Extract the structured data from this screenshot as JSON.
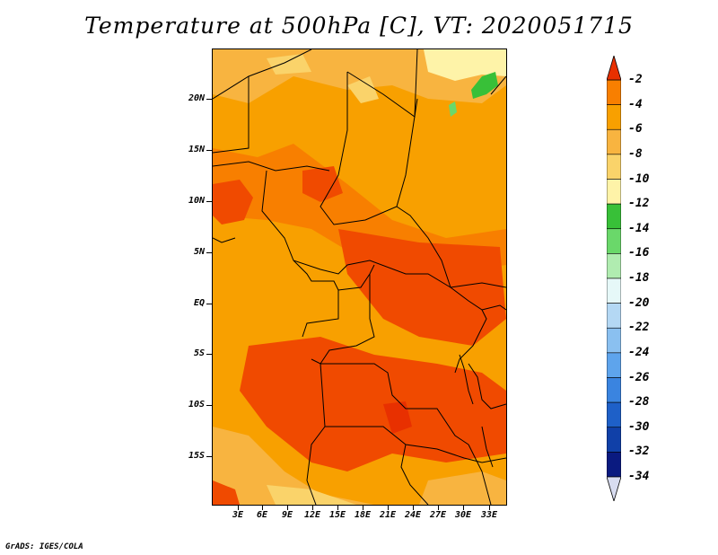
{
  "title": "Temperature at 500hPa [C], VT: 2020051715",
  "credit": "GrADS: IGES/COLA",
  "lat_labels": [
    "20N",
    "15N",
    "10N",
    "5N",
    "EQ",
    "5S",
    "10S",
    "15S"
  ],
  "lon_labels": [
    "3E",
    "6E",
    "9E",
    "12E",
    "15E",
    "18E",
    "21E",
    "24E",
    "27E",
    "30E",
    "33E"
  ],
  "colorbar": {
    "labels": [
      "-2",
      "-4",
      "-6",
      "-8",
      "-10",
      "-12",
      "-14",
      "-16",
      "-18",
      "-20",
      "-22",
      "-24",
      "-26",
      "-28",
      "-30",
      "-32",
      "-34"
    ],
    "colors": [
      "#f04a00",
      "#f87f00",
      "#f8a000",
      "#f8b440",
      "#fad36a",
      "#fef3a8",
      "#38c038",
      "#6ad86a",
      "#b0ecb0",
      "#e6f8f8",
      "#b4d8f4",
      "#8ac0f0",
      "#5ea4ec",
      "#3a84e0",
      "#1e60c8",
      "#1040a8",
      "#0a1a80"
    ],
    "arrow_top": "#e83000",
    "arrow_bottom": "#d8dcf0"
  },
  "palette": {
    "warmest": "#f04a00",
    "warm": "#f87f00",
    "mid": "#f8a000",
    "cool": "#f8b440",
    "pale": "#fad36a",
    "palest": "#fef3a8",
    "green": "#38c038"
  }
}
